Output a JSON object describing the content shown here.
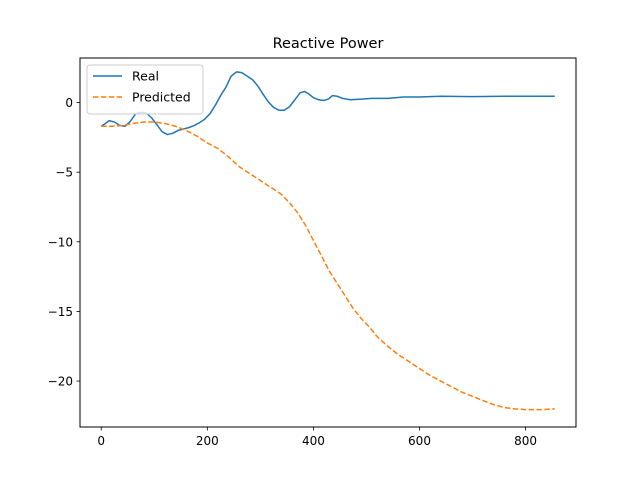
{
  "chart_data": {
    "type": "line",
    "title": "Reactive Power",
    "xlabel": "",
    "ylabel": "",
    "xlim": [
      -40,
      895
    ],
    "ylim": [
      -23.3,
      3.2
    ],
    "xticks": [
      0,
      200,
      400,
      600,
      800
    ],
    "xtick_labels": [
      "0",
      "200",
      "400",
      "600",
      "800"
    ],
    "yticks": [
      0,
      -5,
      -10,
      -15,
      -20
    ],
    "ytick_labels": [
      "0",
      "−5",
      "−10",
      "−15",
      "−20"
    ],
    "grid": false,
    "legend_position": "top-left",
    "series": [
      {
        "name": "Real",
        "color": "#1f77b4",
        "line_style": "solid",
        "points": [
          [
            0,
            -1.7
          ],
          [
            8,
            -1.5
          ],
          [
            15,
            -1.3
          ],
          [
            25,
            -1.4
          ],
          [
            35,
            -1.65
          ],
          [
            45,
            -1.7
          ],
          [
            55,
            -1.35
          ],
          [
            65,
            -0.8
          ],
          [
            75,
            -0.7
          ],
          [
            85,
            -0.75
          ],
          [
            95,
            -1.1
          ],
          [
            105,
            -1.6
          ],
          [
            115,
            -2.1
          ],
          [
            125,
            -2.3
          ],
          [
            135,
            -2.2
          ],
          [
            145,
            -2.0
          ],
          [
            155,
            -1.9
          ],
          [
            165,
            -1.8
          ],
          [
            175,
            -1.65
          ],
          [
            185,
            -1.45
          ],
          [
            195,
            -1.2
          ],
          [
            205,
            -0.8
          ],
          [
            215,
            -0.2
          ],
          [
            225,
            0.5
          ],
          [
            235,
            1.1
          ],
          [
            245,
            1.9
          ],
          [
            255,
            2.2
          ],
          [
            265,
            2.15
          ],
          [
            275,
            1.9
          ],
          [
            285,
            1.65
          ],
          [
            295,
            1.2
          ],
          [
            305,
            0.6
          ],
          [
            315,
            0.05
          ],
          [
            325,
            -0.35
          ],
          [
            335,
            -0.55
          ],
          [
            345,
            -0.55
          ],
          [
            355,
            -0.3
          ],
          [
            365,
            0.2
          ],
          [
            375,
            0.7
          ],
          [
            383,
            0.8
          ],
          [
            390,
            0.65
          ],
          [
            400,
            0.35
          ],
          [
            410,
            0.2
          ],
          [
            420,
            0.15
          ],
          [
            428,
            0.25
          ],
          [
            436,
            0.5
          ],
          [
            445,
            0.45
          ],
          [
            455,
            0.3
          ],
          [
            470,
            0.2
          ],
          [
            490,
            0.25
          ],
          [
            510,
            0.3
          ],
          [
            540,
            0.3
          ],
          [
            570,
            0.4
          ],
          [
            600,
            0.4
          ],
          [
            640,
            0.45
          ],
          [
            700,
            0.43
          ],
          [
            760,
            0.45
          ],
          [
            820,
            0.45
          ],
          [
            855,
            0.45
          ]
        ]
      },
      {
        "name": "Predicted",
        "color": "#ff7f0e",
        "line_style": "dashed",
        "points": [
          [
            0,
            -1.7
          ],
          [
            20,
            -1.7
          ],
          [
            40,
            -1.65
          ],
          [
            60,
            -1.5
          ],
          [
            80,
            -1.4
          ],
          [
            100,
            -1.4
          ],
          [
            120,
            -1.5
          ],
          [
            140,
            -1.7
          ],
          [
            160,
            -2.0
          ],
          [
            180,
            -2.4
          ],
          [
            200,
            -2.9
          ],
          [
            220,
            -3.3
          ],
          [
            240,
            -3.9
          ],
          [
            260,
            -4.6
          ],
          [
            280,
            -5.1
          ],
          [
            300,
            -5.6
          ],
          [
            320,
            -6.1
          ],
          [
            340,
            -6.6
          ],
          [
            355,
            -7.2
          ],
          [
            370,
            -7.9
          ],
          [
            385,
            -8.8
          ],
          [
            400,
            -9.9
          ],
          [
            415,
            -11.0
          ],
          [
            430,
            -12.1
          ],
          [
            445,
            -13.0
          ],
          [
            460,
            -13.9
          ],
          [
            475,
            -14.8
          ],
          [
            490,
            -15.5
          ],
          [
            505,
            -16.1
          ],
          [
            520,
            -16.8
          ],
          [
            540,
            -17.5
          ],
          [
            560,
            -18.1
          ],
          [
            580,
            -18.6
          ],
          [
            600,
            -19.1
          ],
          [
            620,
            -19.6
          ],
          [
            640,
            -20.0
          ],
          [
            660,
            -20.4
          ],
          [
            680,
            -20.8
          ],
          [
            700,
            -21.1
          ],
          [
            720,
            -21.4
          ],
          [
            740,
            -21.7
          ],
          [
            760,
            -21.9
          ],
          [
            780,
            -22.0
          ],
          [
            800,
            -22.05
          ],
          [
            830,
            -22.05
          ],
          [
            855,
            -22.0
          ]
        ]
      }
    ]
  }
}
